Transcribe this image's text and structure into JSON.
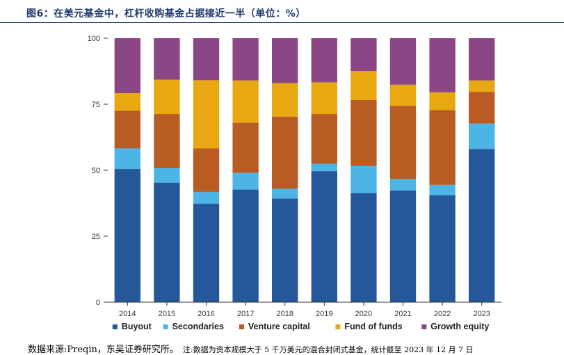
{
  "figure": {
    "title": "图6：在美元基金中，杠杆收购基金占据接近一半（单位：%）",
    "source": "数据来源:Preqin，东吴证券研究所。",
    "note": "注:数据为资本规模大于 5 千万美元的混合封闭式基金，统计截至 2023 年 12 月 7 日"
  },
  "chart_data": {
    "type": "bar",
    "stacked": true,
    "title": "",
    "xlabel": "",
    "ylabel": "",
    "ylim": [
      0,
      100
    ],
    "yticks": [
      0,
      25,
      50,
      75,
      100
    ],
    "grid": false,
    "legend_position": "bottom",
    "categories": [
      "2014",
      "2015",
      "2016",
      "2017",
      "2018",
      "2019",
      "2020",
      "2021",
      "2022",
      "2023"
    ],
    "series": [
      {
        "name": "Buyout",
        "color": "#24589a",
        "values": [
          50.5,
          45.3,
          37.3,
          42.7,
          39.3,
          49.7,
          41.3,
          42.3,
          40.5,
          58.0
        ]
      },
      {
        "name": "Secondaries",
        "color": "#4cb5e6",
        "values": [
          7.8,
          5.5,
          4.5,
          6.3,
          3.7,
          2.8,
          10.3,
          4.3,
          4.0,
          9.7
        ]
      },
      {
        "name": "Venture capital",
        "color": "#b85c24",
        "values": [
          14.2,
          20.5,
          16.5,
          19.0,
          27.3,
          18.8,
          25.0,
          27.8,
          28.3,
          12.0
        ]
      },
      {
        "name": "Fund of funds",
        "color": "#e8a812",
        "values": [
          6.7,
          13.0,
          25.8,
          16.0,
          12.7,
          12.0,
          11.0,
          8.0,
          6.7,
          4.3
        ]
      },
      {
        "name": "Growth equity",
        "color": "#8b4685",
        "values": [
          20.8,
          15.7,
          15.9,
          16.0,
          17.0,
          16.7,
          12.4,
          17.6,
          20.5,
          16.0
        ]
      }
    ]
  }
}
